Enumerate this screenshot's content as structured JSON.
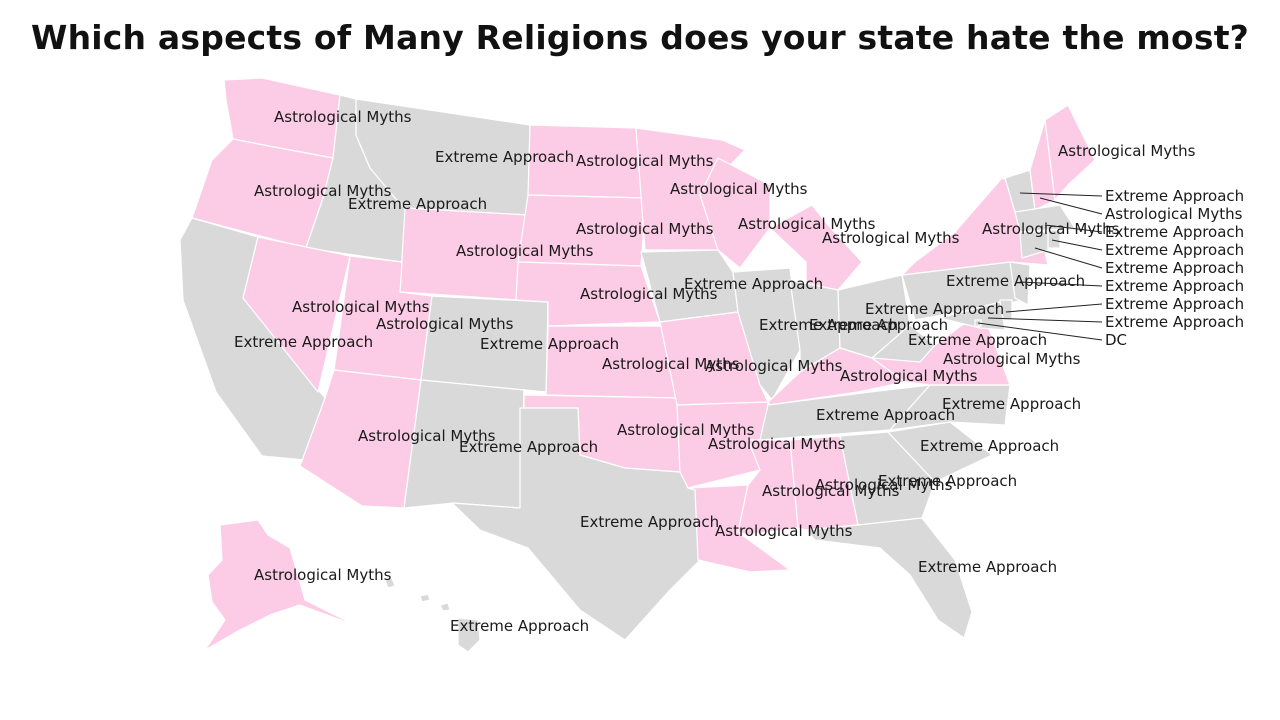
{
  "title": "Which aspects of Many Religions does your state hate the most?",
  "colors": {
    "Astrological Myths": "#fccce6",
    "Extreme Approach": "#d9d9d9"
  },
  "states": [
    {
      "code": "WA",
      "label": "Astrological Myths"
    },
    {
      "code": "OR",
      "label": "Astrological Myths"
    },
    {
      "code": "CA",
      "label": "Extreme Approach"
    },
    {
      "code": "ID",
      "label": "Extreme Approach"
    },
    {
      "code": "NV",
      "label": "Astrological Myths"
    },
    {
      "code": "MT",
      "label": "Extreme Approach"
    },
    {
      "code": "WY",
      "label": "Astrological Myths"
    },
    {
      "code": "UT",
      "label": "Astrological Myths"
    },
    {
      "code": "AZ",
      "label": "Astrological Myths"
    },
    {
      "code": "CO",
      "label": "Extreme Approach"
    },
    {
      "code": "NM",
      "label": "Extreme Approach"
    },
    {
      "code": "ND",
      "label": "Astrological Myths"
    },
    {
      "code": "SD",
      "label": "Astrological Myths"
    },
    {
      "code": "NE",
      "label": "Astrological Myths"
    },
    {
      "code": "KS",
      "label": "Astrological Myths"
    },
    {
      "code": "OK",
      "label": "Astrological Myths"
    },
    {
      "code": "TX",
      "label": "Extreme Approach"
    },
    {
      "code": "MN",
      "label": "Astrological Myths"
    },
    {
      "code": "IA",
      "label": "Extreme Approach"
    },
    {
      "code": "MO",
      "label": "Astrological Myths"
    },
    {
      "code": "AR",
      "label": "Astrological Myths"
    },
    {
      "code": "LA",
      "label": "Astrological Myths"
    },
    {
      "code": "WI",
      "label": "Astrological Myths"
    },
    {
      "code": "MI",
      "label": "Astrological Myths"
    },
    {
      "code": "IL",
      "label": "Extreme Approach"
    },
    {
      "code": "IN",
      "label": "Extreme Approach"
    },
    {
      "code": "OH",
      "label": "Extreme Approach"
    },
    {
      "code": "KY",
      "label": "Astrological Myths"
    },
    {
      "code": "TN",
      "label": "Extreme Approach"
    },
    {
      "code": "MS",
      "label": "Astrological Myths"
    },
    {
      "code": "AL",
      "label": "Astrological Myths"
    },
    {
      "code": "GA",
      "label": "Extreme Approach"
    },
    {
      "code": "FL",
      "label": "Extreme Approach"
    },
    {
      "code": "SC",
      "label": "Extreme Approach"
    },
    {
      "code": "NC",
      "label": "Extreme Approach"
    },
    {
      "code": "VA",
      "label": "Astrological Myths"
    },
    {
      "code": "WV",
      "label": "Extreme Approach"
    },
    {
      "code": "PA",
      "label": "Extreme Approach"
    },
    {
      "code": "NY",
      "label": "Astrological Myths"
    },
    {
      "code": "VT",
      "label": "Extreme Approach"
    },
    {
      "code": "NH",
      "label": "Astrological Myths"
    },
    {
      "code": "ME",
      "label": "Astrological Myths"
    },
    {
      "code": "MA",
      "label": "Extreme Approach"
    },
    {
      "code": "RI",
      "label": "Extreme Approach"
    },
    {
      "code": "CT",
      "label": "Extreme Approach"
    },
    {
      "code": "NJ",
      "label": "Extreme Approach"
    },
    {
      "code": "DE",
      "label": "Extreme Approach"
    },
    {
      "code": "MD",
      "label": "Extreme Approach"
    },
    {
      "code": "DC",
      "label": "DC"
    },
    {
      "code": "AK",
      "label": "Astrological Myths"
    },
    {
      "code": "HI",
      "label": "Extreme Approach"
    }
  ]
}
